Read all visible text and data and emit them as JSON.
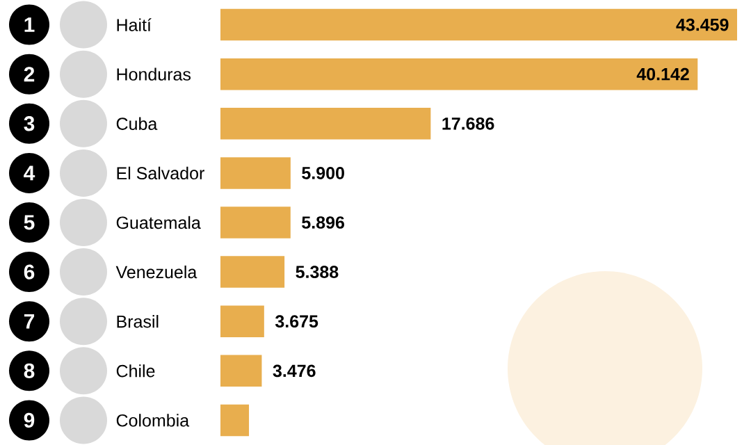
{
  "chart_data": {
    "type": "bar",
    "orientation": "horizontal",
    "color": "#e8ae4e",
    "categories": [
      "Haití",
      "Honduras",
      "Cuba",
      "El Salvador",
      "Guatemala",
      "Venezuela",
      "Brasil",
      "Chile",
      "Colombia"
    ],
    "values": [
      43459,
      40142,
      17686,
      5900,
      5896,
      5388,
      3675,
      3476,
      2400
    ],
    "value_labels": [
      "43.459",
      "40.142",
      "17.686",
      "5.900",
      "5.896",
      "5.388",
      "3.675",
      "3.476",
      null
    ],
    "annotations": [
      "1",
      "2",
      "3",
      "4",
      "5",
      "6",
      "7",
      "8",
      "9"
    ]
  }
}
